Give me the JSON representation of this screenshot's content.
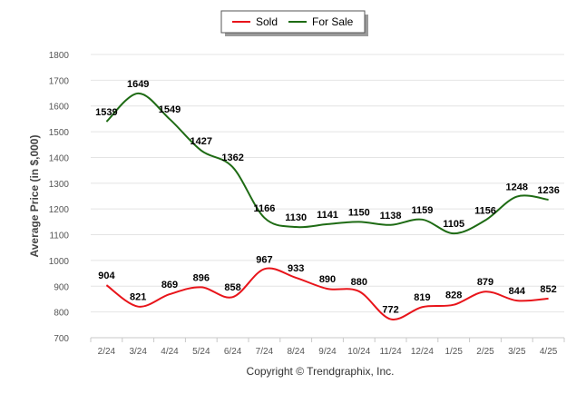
{
  "chart_data": {
    "type": "line",
    "categories": [
      "2/24",
      "3/24",
      "4/24",
      "5/24",
      "6/24",
      "7/24",
      "8/24",
      "9/24",
      "10/24",
      "11/24",
      "12/24",
      "1/25",
      "2/25",
      "3/25",
      "4/25"
    ],
    "series": [
      {
        "name": "Sold",
        "color": "#e8141a",
        "values": [
          904,
          821,
          869,
          896,
          858,
          967,
          933,
          890,
          880,
          772,
          819,
          828,
          879,
          844,
          852
        ],
        "labels": [
          "904",
          "821",
          "869",
          "896",
          "858",
          "967",
          "933",
          "890",
          "880",
          "772",
          "819",
          "828",
          "879",
          "844",
          "852"
        ]
      },
      {
        "name": "For Sale",
        "color": "#1e6b14",
        "values": [
          1539,
          1649,
          1549,
          1427,
          1362,
          1166,
          1130,
          1141,
          1150,
          1138,
          1159,
          1105,
          1156,
          1248,
          1236
        ],
        "labels": [
          "1539",
          "1649",
          "1549",
          "1427",
          "1362",
          "1166",
          "1130",
          "1141",
          "1150",
          "1138",
          "1159",
          "1105",
          "1156",
          "1248",
          "1236"
        ]
      }
    ],
    "ylabel": "Average Price (in $,000)",
    "xlabel": "",
    "ylim": [
      700,
      1800
    ],
    "yticks": [
      "700",
      "800",
      "900",
      "1000",
      "1100",
      "1200",
      "1300",
      "1400",
      "1500",
      "1600",
      "1700",
      "1800"
    ],
    "grid": true,
    "legend_position": "top-center",
    "copyright": "Copyright © Trendgraphix, Inc."
  }
}
